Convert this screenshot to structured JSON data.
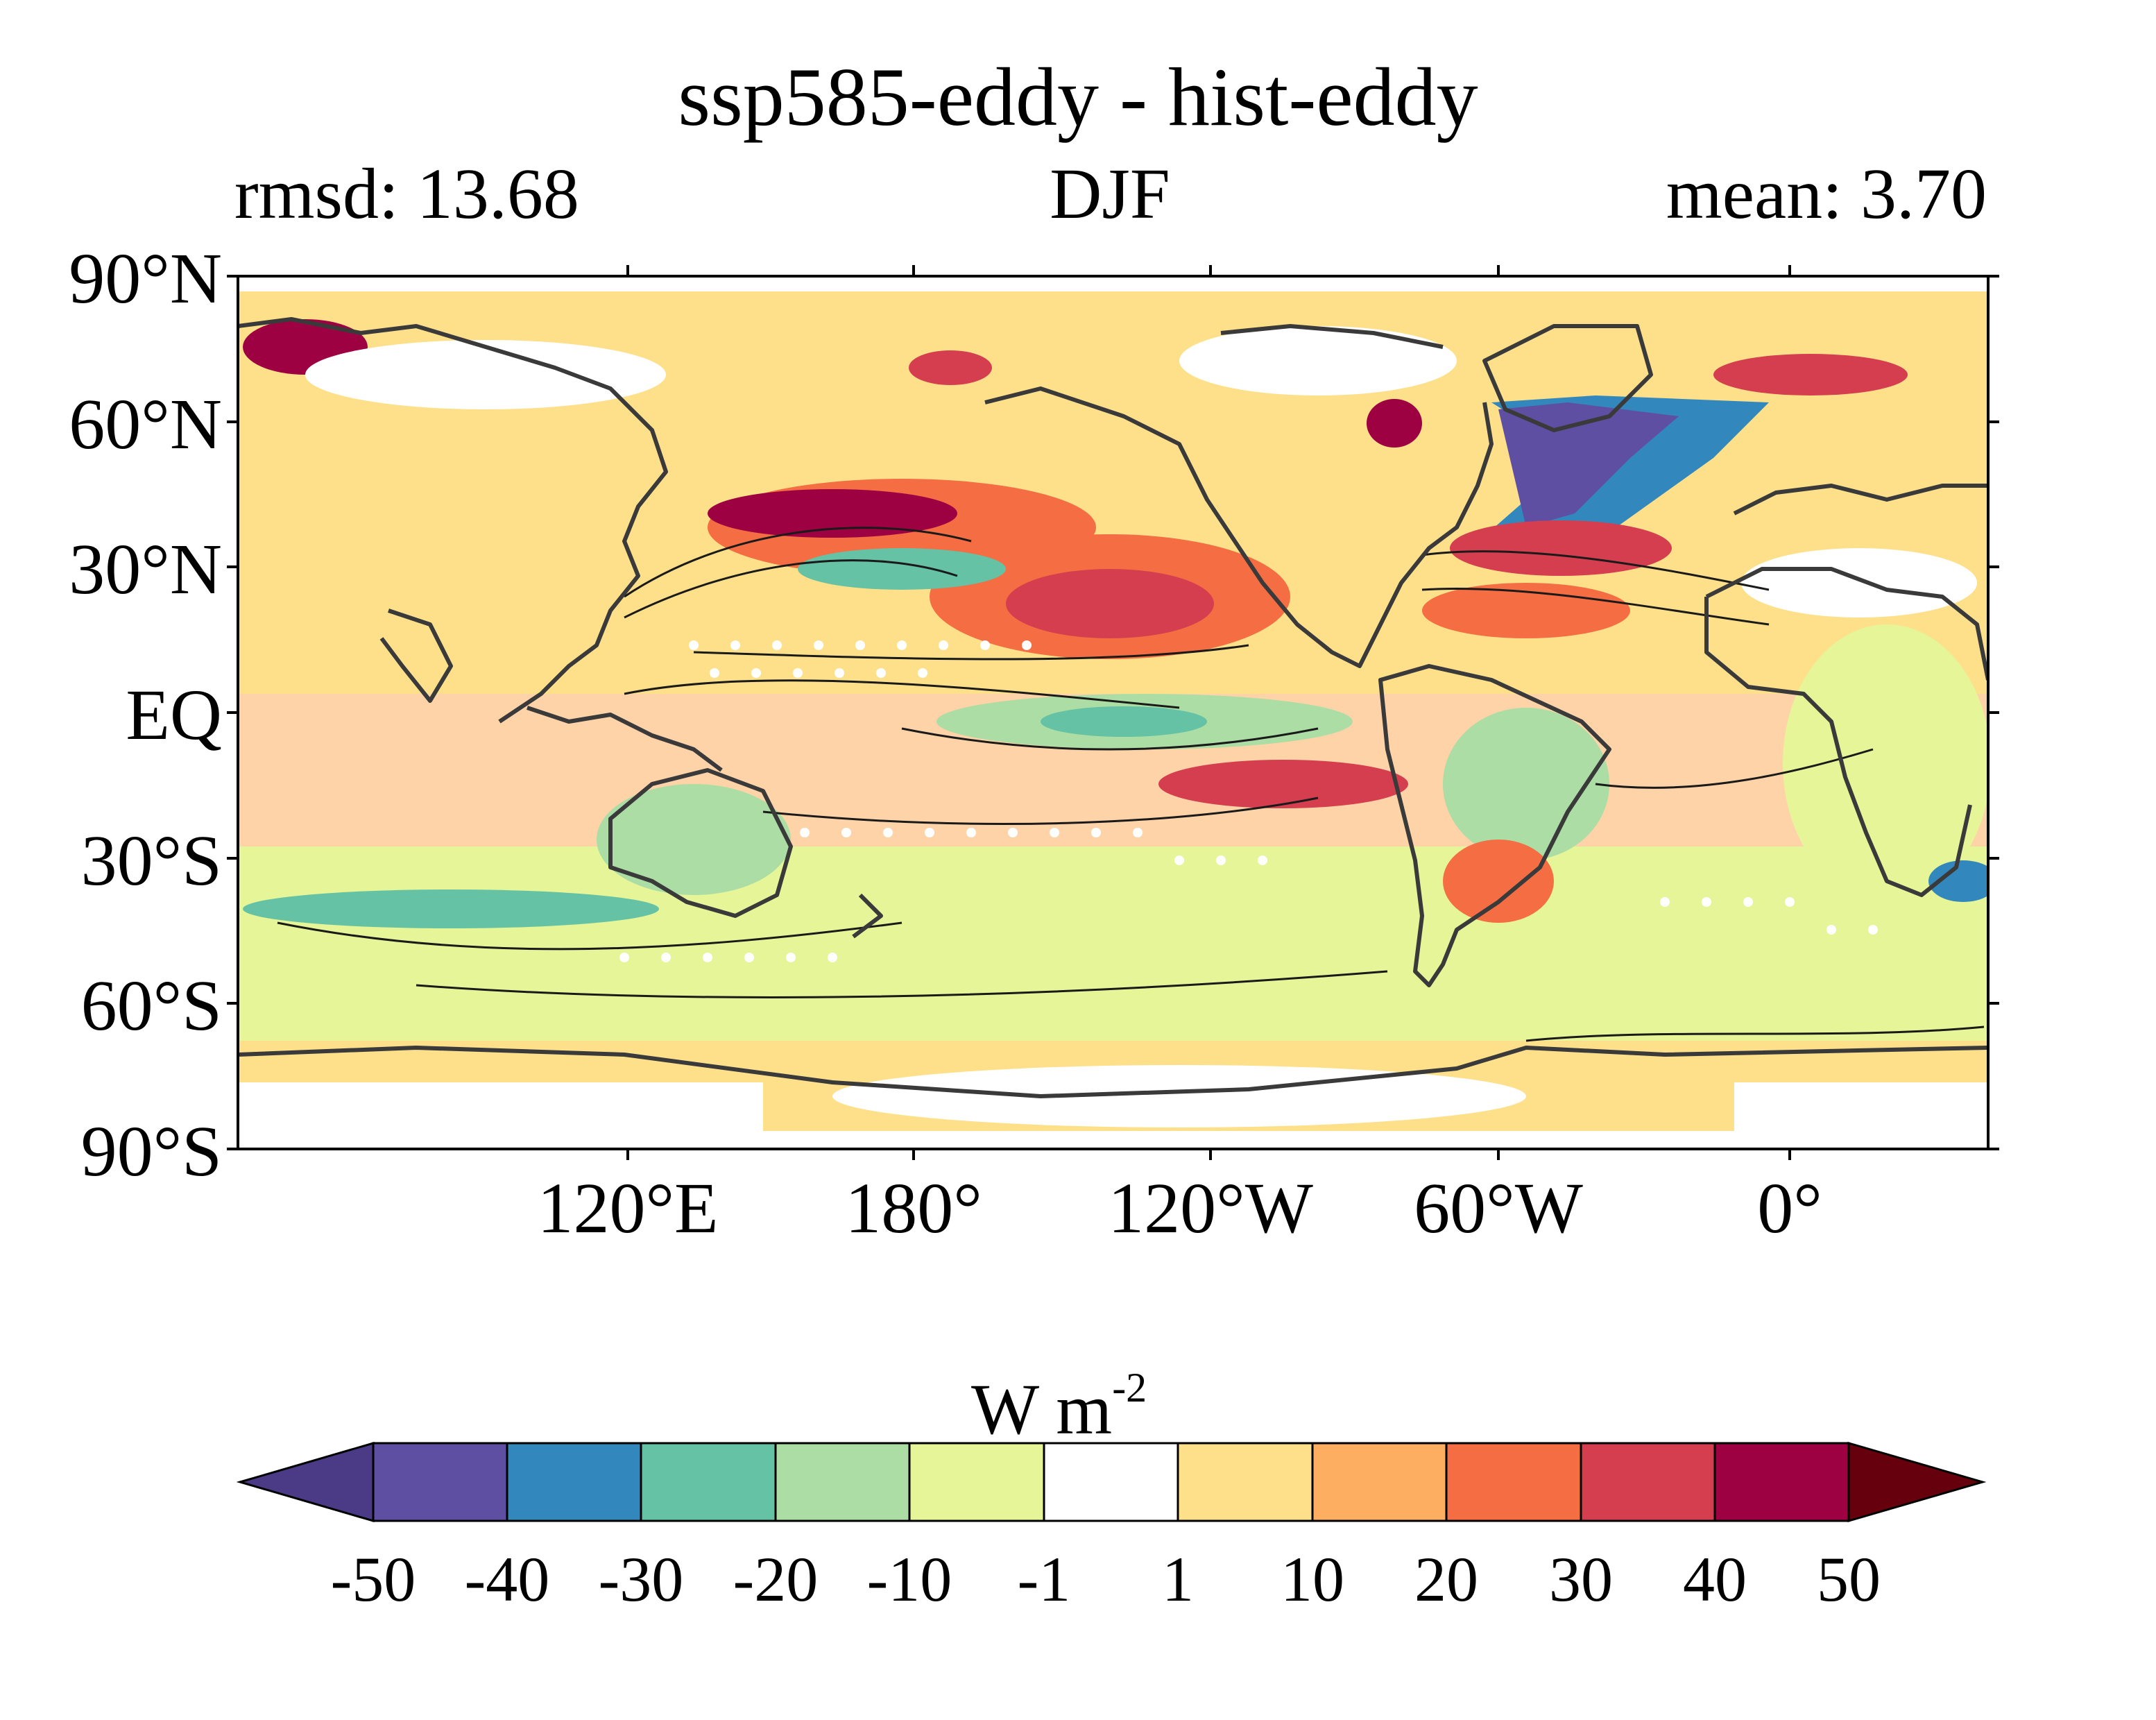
{
  "title": "ssp585-eddy - hist-eddy",
  "left_label": "rmsd: 13.68",
  "center_label": "DJF",
  "right_label": "mean: 3.70",
  "y_ticks": [
    "90°N",
    "60°N",
    "30°N",
    "EQ",
    "30°S",
    "60°S",
    "90°S"
  ],
  "x_ticks": [
    "120°E",
    "180°",
    "120°W",
    "60°W",
    "0°"
  ],
  "colorbar": {
    "units_base": "W m",
    "units_exp": "-2",
    "levels": [
      "-50",
      "-40",
      "-30",
      "-20",
      "-10",
      "-1",
      "1",
      "10",
      "20",
      "30",
      "40",
      "50"
    ],
    "colors": [
      "#5e4fa2",
      "#3288bd",
      "#66c2a5",
      "#abdda4",
      "#e6f598",
      "#ffffff",
      "#fee08b",
      "#fdae61",
      "#f46d43",
      "#d53e4f",
      "#9e0142"
    ],
    "under_color": "#4b3a85",
    "over_color": "#67000d"
  },
  "chart_data": {
    "type": "heatmap",
    "title": "ssp585-eddy - hist-eddy",
    "subtitle_left": "rmsd: 13.68",
    "subtitle_center": "DJF",
    "subtitle_right": "mean: 3.70",
    "projection": "global lat-lon, centered on Pacific",
    "lat_range": [
      -90,
      90
    ],
    "lon_ticks": [
      "120°E",
      "180°",
      "120°W",
      "60°W",
      "0°"
    ],
    "lat_ticks": [
      "90°N",
      "60°N",
      "30°N",
      "EQ",
      "30°S",
      "60°S",
      "90°S"
    ],
    "units": "W m-2",
    "contour_levels": [
      -50,
      -40,
      -30,
      -20,
      -10,
      -1,
      1,
      10,
      20,
      30,
      40,
      50
    ],
    "overlays": [
      "black contour lines (historical field)",
      "white stippling (non-significant)",
      "coastlines"
    ]
  }
}
